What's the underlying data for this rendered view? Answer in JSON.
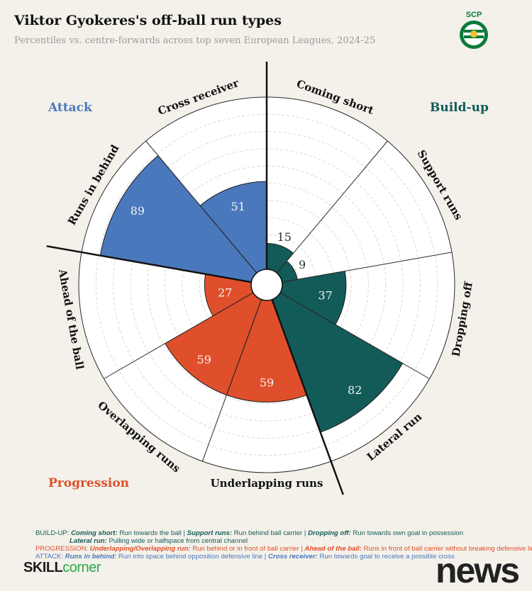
{
  "header": {
    "title": "Viktor Gyokeres's off-ball run types",
    "subtitle": "Percentiles vs. centre-forwards across top seven European Leagues, 2024-25"
  },
  "logo": {
    "text_top": "SCP",
    "ring_text": "SPORTING · PORTUGAL",
    "colors": {
      "green": "#0b7a3b",
      "white": "#ffffff"
    }
  },
  "groups": {
    "attack": {
      "label": "Attack",
      "color": "#4a78bd"
    },
    "buildup": {
      "label": "Build-up",
      "color": "#135b58"
    },
    "progression": {
      "label": "Progression",
      "color": "#e04f2b"
    }
  },
  "chart_data": {
    "type": "polar-bar",
    "scale": [
      0,
      100
    ],
    "grid": true,
    "categories": [
      "Coming short",
      "Support runs",
      "Dropping off",
      "Lateral run",
      "Underlapping runs",
      "Overlapping runs",
      "Ahead of the ball",
      "Runs in behind",
      "Cross receiver"
    ],
    "values": [
      15,
      9,
      37,
      82,
      59,
      59,
      27,
      89,
      51
    ],
    "category_groups": [
      "buildup",
      "buildup",
      "buildup",
      "buildup",
      "progression",
      "progression",
      "progression",
      "attack",
      "attack"
    ],
    "value_labels": [
      "15",
      "9",
      "37",
      "82",
      "59",
      "59",
      "27",
      "89",
      "51"
    ]
  },
  "legend": {
    "buildup_prefix": "BUILD-UP:",
    "coming_short_term": "Coming short:",
    "coming_short_def": " Run towards the ball | ",
    "support_runs_term": "Support runs:",
    "support_runs_def": " Run behind ball carrier | ",
    "dropping_off_term": "Dropping off:",
    "dropping_off_def": " Run towards own goal in possession",
    "lateral_term": "Lateral run:",
    "lateral_def": " Pulling wide or halfspace from central channel",
    "progression_prefix": "PROGRESSION:",
    "underlap_term": "Underlapping/Overlapping run:",
    "underlap_def": " Run behind or in front of ball carrier | ",
    "ahead_term": "Ahead of the ball:",
    "ahead_def": " Runs in front of ball carrier without breaking defensive line",
    "attack_prefix": "ATTACK:",
    "behind_term": "Runs in behind:",
    "behind_def": " Run into space behind opposition defensive line | ",
    "cross_term": "Cross receiver:",
    "cross_def": " Run towards goal to receive a possible cross"
  },
  "footer": {
    "brand_part1": "SKILL",
    "brand_part2": "corner",
    "watermark": "news"
  }
}
